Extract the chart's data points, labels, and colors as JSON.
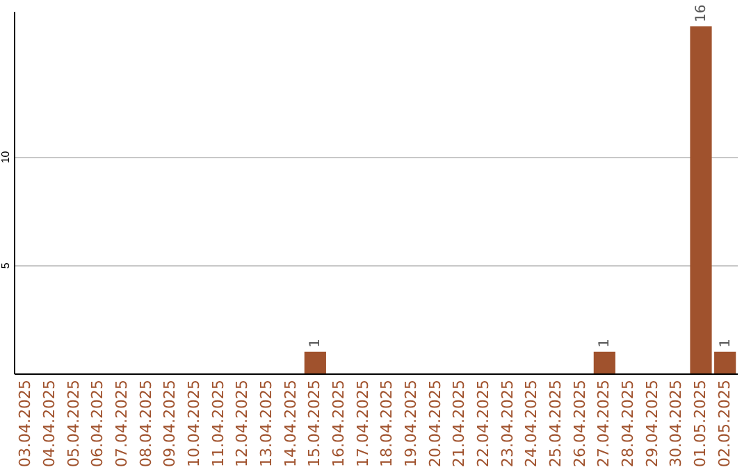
{
  "chart_data": {
    "type": "bar",
    "categories": [
      "03.04.2025",
      "04.04.2025",
      "05.04.2025",
      "06.04.2025",
      "07.04.2025",
      "08.04.2025",
      "09.04.2025",
      "10.04.2025",
      "11.04.2025",
      "12.04.2025",
      "13.04.2025",
      "14.04.2025",
      "15.04.2025",
      "16.04.2025",
      "17.04.2025",
      "18.04.2025",
      "19.04.2025",
      "20.04.2025",
      "21.04.2025",
      "22.04.2025",
      "23.04.2025",
      "24.04.2025",
      "25.04.2025",
      "26.04.2025",
      "27.04.2025",
      "28.04.2025",
      "29.04.2025",
      "30.04.2025",
      "01.05.2025",
      "02.05.2025"
    ],
    "values": [
      null,
      null,
      null,
      null,
      null,
      null,
      null,
      null,
      null,
      null,
      null,
      null,
      1,
      null,
      null,
      null,
      null,
      null,
      null,
      null,
      null,
      null,
      null,
      null,
      1,
      null,
      null,
      null,
      16,
      1
    ],
    "color": "#a0522d",
    "ylim": [
      0,
      16.7
    ],
    "yticks": [
      5,
      10
    ],
    "grid": "y",
    "data_labels": true
  }
}
